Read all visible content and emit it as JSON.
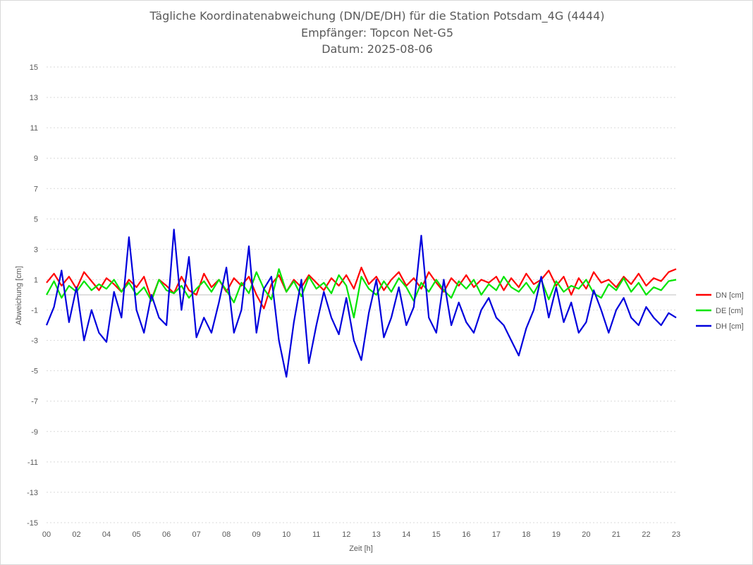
{
  "chart_data": {
    "type": "line",
    "title": "Tägliche Koordinatenabweichung (DN/DE/DH) für die Station Potsdam_4G (4444)",
    "subtitle": "Empfänger: Topcon Net-G5",
    "date_line": "Datum: 2025-08-06",
    "xlabel": "Zeit [h]",
    "ylabel": "Abweichung [cm]",
    "x_tick_labels": [
      "00",
      "02",
      "04",
      "05",
      "06",
      "07",
      "08",
      "09",
      "10",
      "11",
      "12",
      "13",
      "14",
      "15",
      "16",
      "17",
      "18",
      "19",
      "20",
      "21",
      "22",
      "23"
    ],
    "y_ticks": [
      15,
      13,
      11,
      9,
      7,
      5,
      3,
      1,
      -1,
      -3,
      -5,
      -7,
      -9,
      -11,
      -13,
      -15
    ],
    "ylim": [
      -15,
      15
    ],
    "xlim": [
      0,
      21
    ],
    "grid": true,
    "legend_position": "right",
    "series": [
      {
        "name": "DN [cm]",
        "color": "#ff0000",
        "x": [
          0,
          0.25,
          0.5,
          0.75,
          1,
          1.25,
          1.5,
          1.75,
          2,
          2.25,
          2.5,
          2.75,
          3,
          3.25,
          3.5,
          3.75,
          4,
          4.25,
          4.5,
          4.75,
          5,
          5.25,
          5.5,
          5.75,
          6,
          6.25,
          6.5,
          6.75,
          7,
          7.25,
          7.5,
          7.75,
          8,
          8.25,
          8.5,
          8.75,
          9,
          9.25,
          9.5,
          9.75,
          10,
          10.25,
          10.5,
          10.75,
          11,
          11.25,
          11.5,
          11.75,
          12,
          12.25,
          12.5,
          12.75,
          13,
          13.25,
          13.5,
          13.75,
          14,
          14.25,
          14.5,
          14.75,
          15,
          15.25,
          15.5,
          15.75,
          16,
          16.25,
          16.5,
          16.75,
          17,
          17.25,
          17.5,
          17.75,
          18,
          18.25,
          18.5,
          18.75,
          19,
          19.25,
          19.5,
          19.75,
          20,
          20.25,
          20.5,
          20.75,
          21
        ],
        "y": [
          0.8,
          1.4,
          0.6,
          1.2,
          0.4,
          1.5,
          0.9,
          0.3,
          1.1,
          0.7,
          0.2,
          1.0,
          0.5,
          1.2,
          -0.3,
          1.0,
          0.6,
          0.1,
          1.2,
          0.3,
          0.0,
          1.4,
          0.5,
          1.0,
          0.2,
          1.1,
          0.6,
          1.2,
          0.0,
          -0.9,
          0.7,
          1.3,
          0.2,
          1.0,
          0.5,
          1.3,
          0.8,
          0.3,
          1.1,
          0.6,
          1.3,
          0.4,
          1.8,
          0.7,
          1.2,
          0.3,
          1.0,
          1.5,
          0.6,
          1.1,
          0.4,
          1.5,
          0.8,
          0.2,
          1.1,
          0.6,
          1.3,
          0.5,
          1.0,
          0.8,
          1.2,
          0.3,
          1.1,
          0.5,
          1.4,
          0.7,
          1.0,
          1.6,
          0.6,
          1.2,
          0.0,
          1.1,
          0.4,
          1.5,
          0.8,
          1.0,
          0.5,
          1.2,
          0.7,
          1.4,
          0.6,
          1.1,
          0.9,
          1.5,
          1.7
        ]
      },
      {
        "name": "DE [cm]",
        "color": "#00e400",
        "x": [
          0,
          0.25,
          0.5,
          0.75,
          1,
          1.25,
          1.5,
          1.75,
          2,
          2.25,
          2.5,
          2.75,
          3,
          3.25,
          3.5,
          3.75,
          4,
          4.25,
          4.5,
          4.75,
          5,
          5.25,
          5.5,
          5.75,
          6,
          6.25,
          6.5,
          6.75,
          7,
          7.25,
          7.5,
          7.75,
          8,
          8.25,
          8.5,
          8.75,
          9,
          9.25,
          9.5,
          9.75,
          10,
          10.25,
          10.5,
          10.75,
          11,
          11.25,
          11.5,
          11.75,
          12,
          12.25,
          12.5,
          12.75,
          13,
          13.25,
          13.5,
          13.75,
          14,
          14.25,
          14.5,
          14.75,
          15,
          15.25,
          15.5,
          15.75,
          16,
          16.25,
          16.5,
          16.75,
          17,
          17.25,
          17.5,
          17.75,
          18,
          18.25,
          18.5,
          18.75,
          19,
          19.25,
          19.5,
          19.75,
          20,
          20.25,
          20.5,
          20.75,
          21
        ],
        "y": [
          0.0,
          0.9,
          -0.2,
          0.6,
          0.2,
          0.9,
          0.3,
          0.7,
          0.4,
          1.0,
          0.2,
          0.8,
          0.0,
          0.5,
          -0.4,
          1.0,
          0.3,
          0.1,
          0.6,
          -0.2,
          0.4,
          0.9,
          0.2,
          1.0,
          0.3,
          -0.5,
          0.8,
          0.1,
          1.5,
          0.4,
          -0.3,
          1.7,
          0.2,
          0.9,
          -0.1,
          1.2,
          0.4,
          0.8,
          0.1,
          1.3,
          0.6,
          -1.5,
          1.2,
          0.4,
          0.0,
          0.9,
          0.2,
          1.1,
          0.5,
          -0.4,
          0.8,
          0.2,
          1.0,
          0.3,
          -0.2,
          0.9,
          0.4,
          1.0,
          0.0,
          0.7,
          0.3,
          1.2,
          0.5,
          0.2,
          0.8,
          0.1,
          1.0,
          -0.3,
          0.9,
          0.2,
          0.6,
          0.4,
          1.0,
          0.1,
          -0.2,
          0.7,
          0.3,
          1.1,
          0.2,
          0.8,
          0.0,
          0.5,
          0.3,
          0.9,
          1.0
        ]
      },
      {
        "name": "DH [cm]",
        "color": "#0000dd",
        "x": [
          0,
          0.25,
          0.5,
          0.75,
          1,
          1.25,
          1.5,
          1.75,
          2,
          2.25,
          2.5,
          2.75,
          3,
          3.25,
          3.5,
          3.75,
          4,
          4.25,
          4.5,
          4.75,
          5,
          5.25,
          5.5,
          5.75,
          6,
          6.25,
          6.5,
          6.75,
          7,
          7.25,
          7.5,
          7.75,
          8,
          8.25,
          8.5,
          8.75,
          9,
          9.25,
          9.5,
          9.75,
          10,
          10.25,
          10.5,
          10.75,
          11,
          11.25,
          11.5,
          11.75,
          12,
          12.25,
          12.5,
          12.75,
          13,
          13.25,
          13.5,
          13.75,
          14,
          14.25,
          14.5,
          14.75,
          15,
          15.25,
          15.5,
          15.75,
          16,
          16.25,
          16.5,
          16.75,
          17,
          17.25,
          17.5,
          17.75,
          18,
          18.25,
          18.5,
          18.75,
          19,
          19.25,
          19.5,
          19.75,
          20,
          20.25,
          20.5,
          20.75,
          21
        ],
        "y": [
          -2.0,
          -0.8,
          1.6,
          -1.8,
          0.5,
          -3.0,
          -1.0,
          -2.5,
          -3.1,
          0.2,
          -1.5,
          3.8,
          -1.0,
          -2.5,
          0.0,
          -1.5,
          -2.0,
          4.3,
          -1.0,
          2.5,
          -2.8,
          -1.5,
          -2.5,
          -0.5,
          1.8,
          -2.5,
          -1.0,
          3.2,
          -2.5,
          0.4,
          1.2,
          -3.0,
          -5.4,
          -1.8,
          1.0,
          -4.5,
          -2.0,
          0.2,
          -1.5,
          -2.6,
          -0.2,
          -3.0,
          -4.3,
          -1.2,
          1.0,
          -2.8,
          -1.5,
          0.5,
          -2.0,
          -0.8,
          3.9,
          -1.5,
          -2.5,
          1.0,
          -2.0,
          -0.5,
          -1.8,
          -2.5,
          -1.0,
          -0.2,
          -1.5,
          -2.0,
          -3.0,
          -4.0,
          -2.2,
          -1.0,
          1.2,
          -1.5,
          0.5,
          -1.8,
          -0.5,
          -2.5,
          -1.8,
          0.3,
          -1.0,
          -2.5,
          -1.0,
          -0.2,
          -1.5,
          -2.0,
          -0.8,
          -1.5,
          -2.0,
          -1.2,
          -1.5
        ]
      }
    ]
  }
}
